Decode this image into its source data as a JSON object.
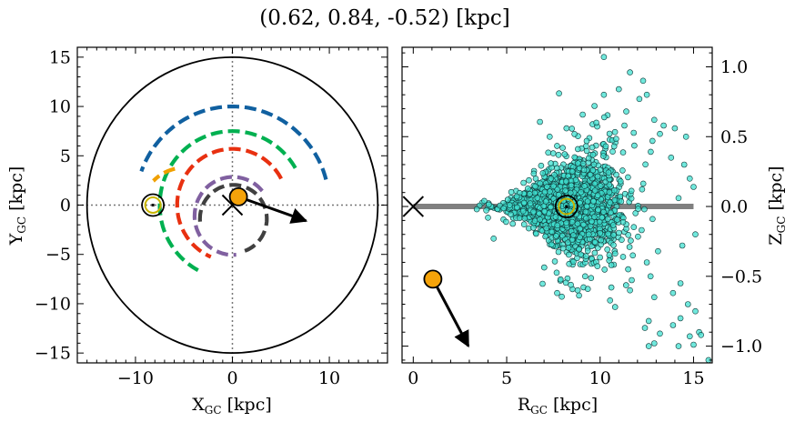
{
  "title": "(0.62, 0.84, -0.52) [kpc]",
  "chart_data": [
    {
      "type": "line",
      "panel": "left",
      "xlabel_main": "X",
      "xlabel_sub": "GC",
      "xlabel_unit": " [kpc]",
      "ylabel_main": "Y",
      "ylabel_sub": "GC",
      "ylabel_unit": " [kpc]",
      "xlim": [
        -16,
        16
      ],
      "ylim": [
        -16,
        16
      ],
      "xticks": [
        -10,
        0,
        10
      ],
      "xtick_labels": [
        "−10",
        "0",
        "10"
      ],
      "yticks": [
        -15,
        -10,
        -5,
        0,
        5,
        10,
        15
      ],
      "ytick_labels": [
        "−15",
        "−10",
        "−5",
        "0",
        "5",
        "10",
        "15"
      ],
      "boundary_radius": 15,
      "arms": [
        {
          "color": "#1060a0",
          "radius": 10.0,
          "from_deg": 15,
          "to_deg": 160
        },
        {
          "color": "#00b050",
          "radius": 7.5,
          "from_deg": 30,
          "to_deg": 242
        },
        {
          "color": "#f0a000",
          "radius": 4.6,
          "from_deg": 103,
          "to_deg": 135,
          "cx": -4.9,
          "cy": -0.8
        },
        {
          "color": "#e83010",
          "radius": 5.7,
          "from_deg": 28,
          "to_deg": 247
        },
        {
          "color": "#8060a0",
          "radius": 3.95,
          "from_deg": 40,
          "to_deg": 275,
          "cx": 0.05,
          "cy": -1.1
        },
        {
          "color": "#404040",
          "radius": 3.45,
          "from_deg": -70,
          "to_deg": 190,
          "cx": 0.1,
          "cy": -1.4
        }
      ],
      "sun": [
        -8.2,
        0
      ],
      "galactic_center": [
        0,
        0
      ],
      "target": [
        0.62,
        0.84
      ],
      "velocity_arrow_end": [
        7.6,
        -1.6
      ]
    },
    {
      "type": "scatter",
      "panel": "right",
      "xlabel_main": "R",
      "xlabel_sub": "GC",
      "xlabel_unit": " [kpc]",
      "ylabel_main": "Z",
      "ylabel_sub": "GC",
      "ylabel_unit": " [kpc]",
      "xlim": [
        -0.6,
        16
      ],
      "ylim": [
        -1.12,
        1.14
      ],
      "xticks": [
        0,
        5,
        10,
        15
      ],
      "xtick_labels": [
        "0",
        "5",
        "10",
        "15"
      ],
      "yticks": [
        -1.0,
        -0.5,
        0.0,
        0.5,
        1.0
      ],
      "ytick_labels": [
        "−1.0",
        "−0.5",
        "0.0",
        "0.5",
        "1.0"
      ],
      "disk_line": {
        "x": [
          0,
          15
        ],
        "z": 0
      },
      "sun": [
        8.2,
        0
      ],
      "galactic_center": [
        0,
        0
      ],
      "target": [
        1.05,
        -0.52
      ],
      "velocity_arrow_end": [
        2.95,
        -1.0
      ],
      "sample_count": 2200,
      "sample_center_r": 8.2,
      "outliers": [
        [
          10.2,
          1.07
        ],
        [
          11.6,
          0.96
        ],
        [
          12.3,
          0.9
        ],
        [
          12.5,
          0.8
        ],
        [
          11.0,
          0.84
        ],
        [
          7.8,
          0.81
        ],
        [
          10.2,
          0.8
        ],
        [
          12.1,
          0.77
        ],
        [
          9.7,
          0.72
        ],
        [
          11.4,
          0.68
        ],
        [
          12.9,
          0.62
        ],
        [
          13.4,
          0.58
        ],
        [
          14.0,
          0.56
        ],
        [
          14.6,
          0.5
        ],
        [
          12.8,
          0.47
        ],
        [
          7.3,
          0.5
        ],
        [
          8.2,
          0.56
        ],
        [
          9.8,
          0.6
        ],
        [
          11.3,
          0.58
        ],
        [
          13.2,
          0.52
        ],
        [
          14.5,
          0.3
        ],
        [
          13.8,
          0.35
        ],
        [
          14.8,
          0.2
        ],
        [
          15.0,
          0.14
        ],
        [
          14.2,
          0.06
        ],
        [
          3.8,
          0.04
        ],
        [
          3.4,
          -0.02
        ],
        [
          4.0,
          -0.08
        ],
        [
          15.1,
          -0.2
        ],
        [
          14.4,
          -0.28
        ],
        [
          13.1,
          -0.32
        ],
        [
          12.5,
          -0.4
        ],
        [
          11.5,
          -0.45
        ],
        [
          12.7,
          -0.5
        ],
        [
          14.3,
          -0.55
        ],
        [
          13.9,
          -0.62
        ],
        [
          12.9,
          -0.65
        ],
        [
          11.6,
          -0.6
        ],
        [
          10.6,
          -0.58
        ],
        [
          8.8,
          -0.6
        ],
        [
          7.7,
          -0.62
        ],
        [
          10.8,
          -0.72
        ],
        [
          14.7,
          -0.7
        ],
        [
          15.1,
          -0.75
        ],
        [
          14.3,
          -0.8
        ],
        [
          12.6,
          -0.82
        ],
        [
          12.4,
          -0.87
        ],
        [
          13.9,
          -0.85
        ],
        [
          13.2,
          -0.91
        ],
        [
          15.3,
          -0.9
        ],
        [
          14.8,
          -0.93
        ],
        [
          12.9,
          -0.98
        ],
        [
          12.6,
          -1.0
        ],
        [
          14.2,
          -1.0
        ],
        [
          15.0,
          -0.99
        ],
        [
          15.4,
          -0.92
        ],
        [
          15.8,
          -1.1
        ],
        [
          10.6,
          -0.42
        ],
        [
          9.2,
          -0.5
        ],
        [
          4.3,
          -0.23
        ]
      ]
    }
  ]
}
